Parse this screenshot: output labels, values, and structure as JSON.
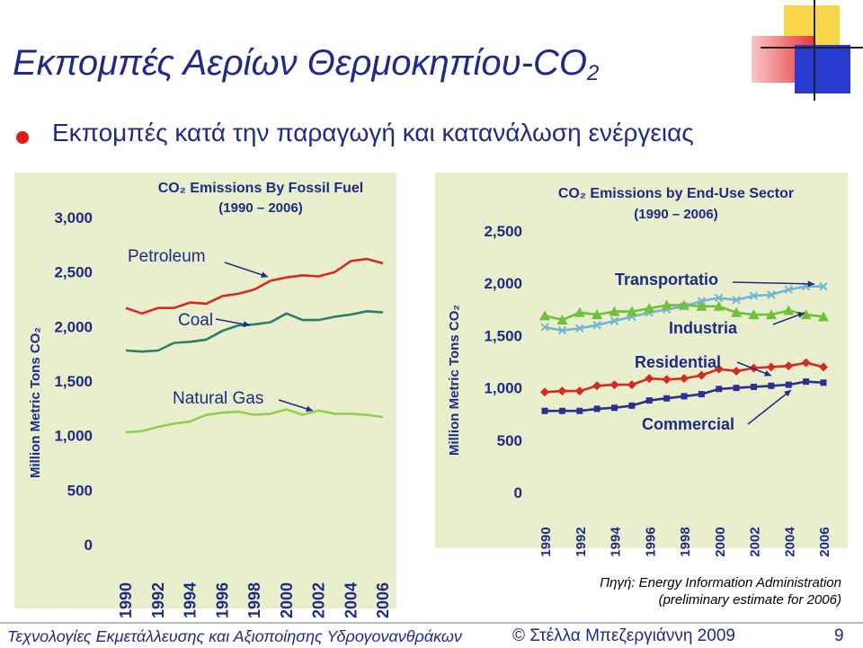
{
  "slide": {
    "title_main": "Εκπομπές Αερίων Θερμοκηπίου-CO",
    "title_sub": "2",
    "bullet": "Εκπομπές κατά την παραγωγή και κατανάλωση ενέργειας",
    "source_line1": "Πηγή: Energy Information Administration",
    "source_line2": "(preliminary estimate for 2006)",
    "footer_left": "Τεχνολογίες Εκμετάλλευσης και Αξιοποίησης Υδρογονανθράκων",
    "footer_right": "© Στέλλα Μπεζεργιάννη 2009",
    "page_number": "9"
  },
  "colors": {
    "title": "#1f2a87",
    "bullet": "#e31a1a",
    "panel": "#e9efcd",
    "red": "#d62a1e",
    "teal": "#2e7d6b",
    "lightgreen": "#8fd14a",
    "green": "#6fc03a",
    "cyan": "#6fb7d6",
    "navy": "#2d2f8f"
  },
  "chart_data": [
    {
      "type": "line",
      "title": "CO₂ Emissions By Fossil Fuel",
      "subtitle": "(1990 – 2006)",
      "ylabel": "Million Metric Tons CO₂",
      "ylim": [
        0,
        3000
      ],
      "yticks": [
        "0",
        "500",
        "1,000",
        "1,500",
        "2,000",
        "2,500",
        "3,000"
      ],
      "ytick_values": [
        0,
        500,
        1000,
        1500,
        2000,
        2500,
        3000
      ],
      "x": [
        1990,
        1991,
        1992,
        1993,
        1994,
        1995,
        1996,
        1997,
        1998,
        1999,
        2000,
        2001,
        2002,
        2003,
        2004,
        2005,
        2006
      ],
      "xticks": [
        "1990",
        "1992",
        "1994",
        "1996",
        "1998",
        "2000",
        "2002",
        "2004",
        "2006"
      ],
      "series": [
        {
          "name": "Petroleum",
          "color": "red",
          "values": [
            2170,
            2120,
            2170,
            2170,
            2220,
            2210,
            2280,
            2300,
            2340,
            2420,
            2450,
            2470,
            2460,
            2500,
            2600,
            2620,
            2580
          ]
        },
        {
          "name": "Coal",
          "color": "teal",
          "values": [
            1780,
            1770,
            1780,
            1850,
            1860,
            1880,
            1960,
            2010,
            2020,
            2040,
            2120,
            2060,
            2060,
            2090,
            2110,
            2140,
            2130
          ]
        },
        {
          "name": "Natural Gas",
          "color": "lightgreen",
          "values": [
            1030,
            1040,
            1080,
            1110,
            1130,
            1190,
            1210,
            1220,
            1190,
            1200,
            1240,
            1190,
            1230,
            1200,
            1200,
            1190,
            1170
          ]
        }
      ]
    },
    {
      "type": "line",
      "title": "CO₂ Emissions by End-Use Sector",
      "subtitle": "(1990 – 2006)",
      "ylabel": "Million Metric Tons CO₂",
      "ylim": [
        0,
        2500
      ],
      "yticks": [
        "0",
        "500",
        "1,000",
        "1,500",
        "2,000",
        "2,500"
      ],
      "ytick_values": [
        0,
        500,
        1000,
        1500,
        2000,
        2500
      ],
      "x": [
        1990,
        1991,
        1992,
        1993,
        1994,
        1995,
        1996,
        1997,
        1998,
        1999,
        2000,
        2001,
        2002,
        2003,
        2004,
        2005,
        2006
      ],
      "xticks": [
        "1990",
        "1992",
        "1994",
        "1996",
        "1998",
        "2000",
        "2002",
        "2004",
        "2006"
      ],
      "series": [
        {
          "name": "Transportatio",
          "color": "cyan",
          "marker": "x",
          "values": [
            1580,
            1550,
            1570,
            1600,
            1640,
            1680,
            1720,
            1750,
            1780,
            1830,
            1860,
            1840,
            1880,
            1890,
            1940,
            1970,
            1970
          ]
        },
        {
          "name": "Industria",
          "color": "green",
          "marker": "triangle",
          "values": [
            1690,
            1650,
            1720,
            1700,
            1730,
            1730,
            1760,
            1790,
            1790,
            1780,
            1780,
            1720,
            1700,
            1700,
            1740,
            1700,
            1680
          ]
        },
        {
          "name": "Residential",
          "color": "red",
          "marker": "diamond",
          "values": [
            960,
            970,
            970,
            1020,
            1030,
            1030,
            1090,
            1080,
            1090,
            1120,
            1180,
            1160,
            1190,
            1200,
            1210,
            1240,
            1200
          ]
        },
        {
          "name": "Commercial",
          "color": "navy",
          "marker": "square",
          "values": [
            780,
            780,
            780,
            800,
            810,
            830,
            880,
            900,
            920,
            940,
            990,
            1000,
            1010,
            1020,
            1030,
            1060,
            1050
          ]
        }
      ]
    }
  ]
}
